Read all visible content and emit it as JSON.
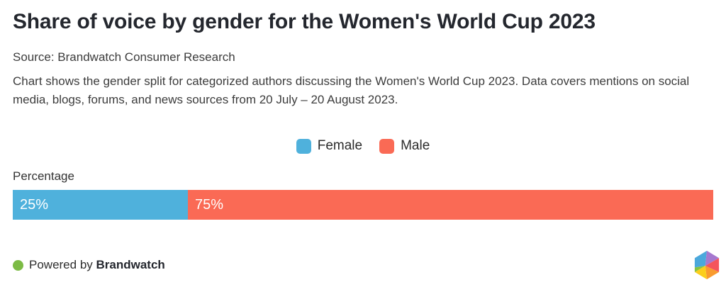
{
  "header": {
    "title": "Share of voice by gender for the Women's World Cup 2023",
    "source": "Source: Brandwatch Consumer Research",
    "description": "Chart shows the gender split for categorized authors discussing the Women's World Cup 2023. Data covers mentions on social media, blogs, forums, and news sources from 20 July – 20 August 2023."
  },
  "legend": {
    "items": [
      {
        "label": "Female",
        "color": "#4FB1DC"
      },
      {
        "label": "Male",
        "color": "#FA6A55"
      }
    ]
  },
  "chart": {
    "axis_label": "Percentage"
  },
  "chart_data": {
    "type": "bar",
    "subtype": "horizontal-stacked-100",
    "title": "Share of voice by gender for the Women's World Cup 2023",
    "categories": [
      "Female",
      "Male"
    ],
    "values": [
      25,
      75
    ],
    "value_labels": [
      "25%",
      "75%"
    ],
    "colors": [
      "#4FB1DC",
      "#FA6A55"
    ],
    "xlabel": "Percentage",
    "ylabel": "",
    "xlim": [
      0,
      100
    ],
    "grid": false,
    "legend_position": "top-center"
  },
  "footer": {
    "powered_by": "Powered by",
    "brand": "Brandwatch",
    "dot_color": "#7CBB45"
  },
  "logo": {
    "facet_colors": {
      "blue": "#4BA8DC",
      "purple": "#A678CF",
      "red": "#F4555C",
      "orange": "#F99B2F",
      "yellow": "#FBCE1C",
      "green": "#86C440"
    }
  }
}
